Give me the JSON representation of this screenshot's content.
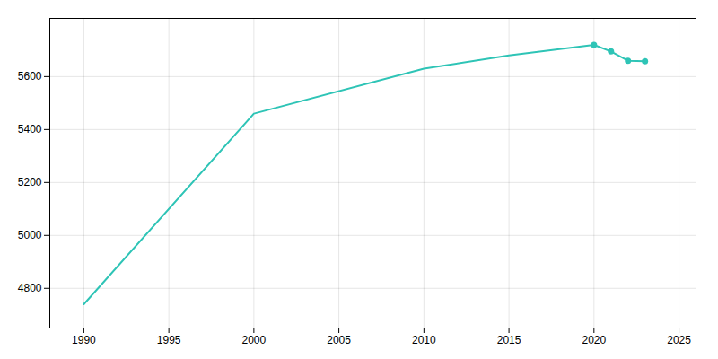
{
  "chart_data": {
    "type": "line",
    "x": [
      1990,
      2000,
      2010,
      2015,
      2020,
      2021,
      2022,
      2023
    ],
    "series": [
      {
        "type": "line",
        "color": "#2ec4b6",
        "values": [
          4740,
          5460,
          5630,
          5680,
          5720,
          5695,
          5660,
          5658
        ]
      },
      {
        "type": "scatter",
        "marker": "circle",
        "color": "#2ec4b6",
        "values": [
          null,
          null,
          null,
          null,
          5720,
          5695,
          5660,
          5658
        ]
      }
    ],
    "xlim": [
      1988,
      2026
    ],
    "ylim": [
      4650,
      5820
    ],
    "xticks": [
      1990,
      1995,
      2000,
      2005,
      2010,
      2015,
      2020,
      2025
    ],
    "yticks": [
      4800,
      5000,
      5200,
      5400,
      5600
    ],
    "grid": true
  }
}
